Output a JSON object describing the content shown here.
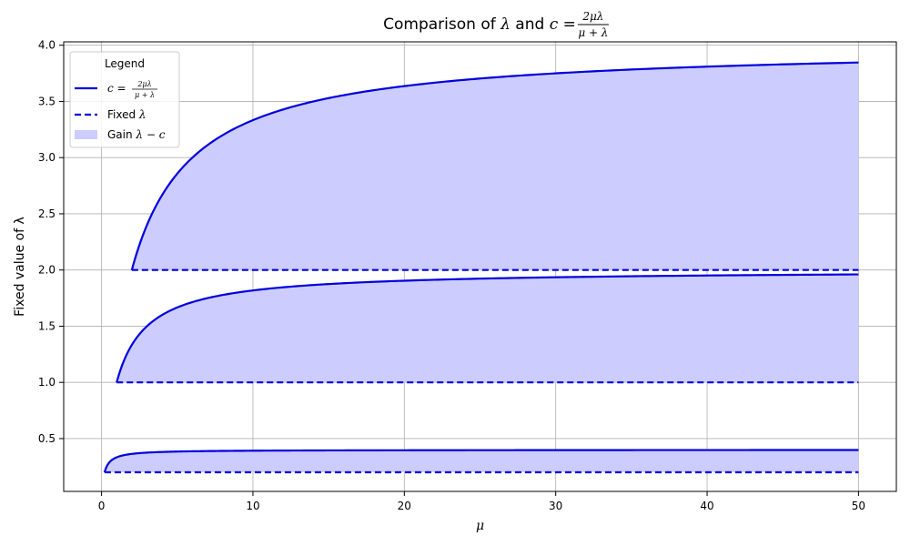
{
  "chart_data": {
    "type": "line",
    "title": "Comparison of λ and c = 2μλ/(μ+λ)",
    "xlabel": "μ",
    "ylabel": "Fixed value of λ",
    "xlim": [
      -2.5,
      52.5
    ],
    "ylim": [
      0.03,
      4.03
    ],
    "x_ticks": [
      0,
      10,
      20,
      30,
      40,
      50
    ],
    "y_ticks": [
      0.5,
      1.0,
      1.5,
      2.0,
      2.5,
      3.0,
      3.5,
      4.0
    ],
    "x_tick_labels": [
      "0",
      "10",
      "20",
      "30",
      "40",
      "50"
    ],
    "y_tick_labels": [
      "0.5",
      "1.0",
      "1.5",
      "2.0",
      "2.5",
      "3.0",
      "3.5",
      "4.0"
    ],
    "grid": true,
    "legend": {
      "title": "Legend",
      "placement": "top-left",
      "entries": [
        "c = 2μλ/(μ+λ)",
        "Fixed λ",
        "Gain λ − c"
      ]
    },
    "mu_range": [
      0.2,
      50
    ],
    "lambdas": [
      0.2,
      1.0,
      2.0
    ],
    "series": [
      {
        "lambda": 0.2,
        "mu": [
          0.2,
          0.5,
          1,
          2,
          5,
          10,
          20,
          30,
          40,
          50
        ],
        "c": [
          0.2,
          0.286,
          0.333,
          0.364,
          0.385,
          0.392,
          0.396,
          0.397,
          0.398,
          0.398
        ]
      },
      {
        "lambda": 1.0,
        "mu": [
          1,
          2,
          3,
          5,
          10,
          15,
          20,
          30,
          40,
          50
        ],
        "c": [
          1.0,
          1.333,
          1.5,
          1.667,
          1.818,
          1.875,
          1.905,
          1.935,
          1.951,
          1.961
        ]
      },
      {
        "lambda": 2.0,
        "mu": [
          2,
          3,
          5,
          10,
          15,
          20,
          30,
          40,
          50
        ],
        "c": [
          2.0,
          2.4,
          2.857,
          3.333,
          3.529,
          3.636,
          3.75,
          3.81,
          3.846
        ]
      }
    ],
    "colors": {
      "line": "#0000dd",
      "fill": "#ccccff",
      "grid": "#b0b0b0",
      "axis": "#000000"
    }
  }
}
